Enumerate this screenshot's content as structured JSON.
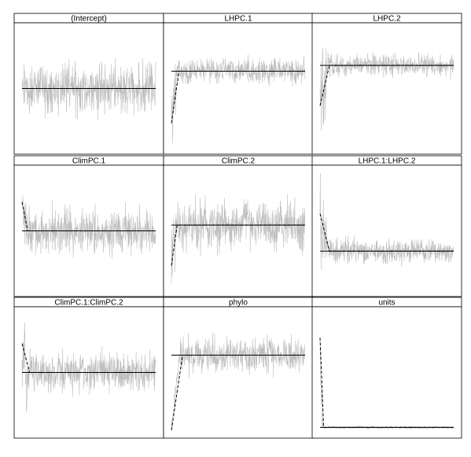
{
  "figure": {
    "layout": {
      "rows": 3,
      "cols": 3
    },
    "colors": {
      "trace": "#bdbdbd",
      "reference_line": "#000000",
      "running_mean": "#000000",
      "frame": "#000000",
      "background": "#ffffff"
    }
  },
  "chart_data": [
    {
      "type": "line",
      "title": "(Intercept)",
      "grid": false,
      "ylim": [
        -1,
        1
      ],
      "mean": 0.0,
      "spread": 0.5,
      "burnin_start": 0.0,
      "burnin_frac": 0.0,
      "burnin_spread": 0.5
    },
    {
      "type": "line",
      "title": "LHPC.1",
      "grid": false,
      "ylim": [
        -1,
        1
      ],
      "mean": 0.3,
      "spread": 0.25,
      "burnin_start": -0.6,
      "burnin_frac": 0.04,
      "burnin_spread": 0.7
    },
    {
      "type": "line",
      "title": "LHPC.2",
      "grid": false,
      "ylim": [
        -1,
        1
      ],
      "mean": 0.4,
      "spread": 0.22,
      "burnin_start": -0.3,
      "burnin_frac": 0.05,
      "burnin_spread": 0.9
    },
    {
      "type": "line",
      "title": "ClimPC.1",
      "grid": false,
      "ylim": [
        -1,
        1
      ],
      "mean": 0.0,
      "spread": 0.45,
      "burnin_start": 0.5,
      "burnin_frac": 0.03,
      "burnin_spread": 0.55
    },
    {
      "type": "line",
      "title": "ClimPC.2",
      "grid": false,
      "ylim": [
        -1,
        1
      ],
      "mean": 0.1,
      "spread": 0.5,
      "burnin_start": -0.6,
      "burnin_frac": 0.03,
      "burnin_spread": 0.7
    },
    {
      "type": "line",
      "title": "LHPC.1:LHPC.2",
      "grid": false,
      "ylim": [
        -1,
        1
      ],
      "mean": -0.35,
      "spread": 0.25,
      "burnin_start": 0.3,
      "burnin_frac": 0.05,
      "burnin_spread": 0.9
    },
    {
      "type": "line",
      "title": "ClimPC.1:ClimPC.2",
      "grid": false,
      "ylim": [
        -1,
        1
      ],
      "mean": 0.0,
      "spread": 0.4,
      "burnin_start": 0.5,
      "burnin_frac": 0.04,
      "burnin_spread": 0.85
    },
    {
      "type": "line",
      "title": "phylo",
      "grid": false,
      "ylim": [
        -1,
        1
      ],
      "mean": 0.3,
      "spread": 0.35,
      "burnin_start": -1.0,
      "burnin_frac": 0.06,
      "burnin_spread": 0.2
    },
    {
      "type": "line",
      "title": "units",
      "grid": false,
      "ylim": [
        -1,
        1
      ],
      "mean": -0.95,
      "spread": 0.03,
      "burnin_start": 0.6,
      "burnin_frac": 0.02,
      "burnin_spread": 0.9
    }
  ]
}
